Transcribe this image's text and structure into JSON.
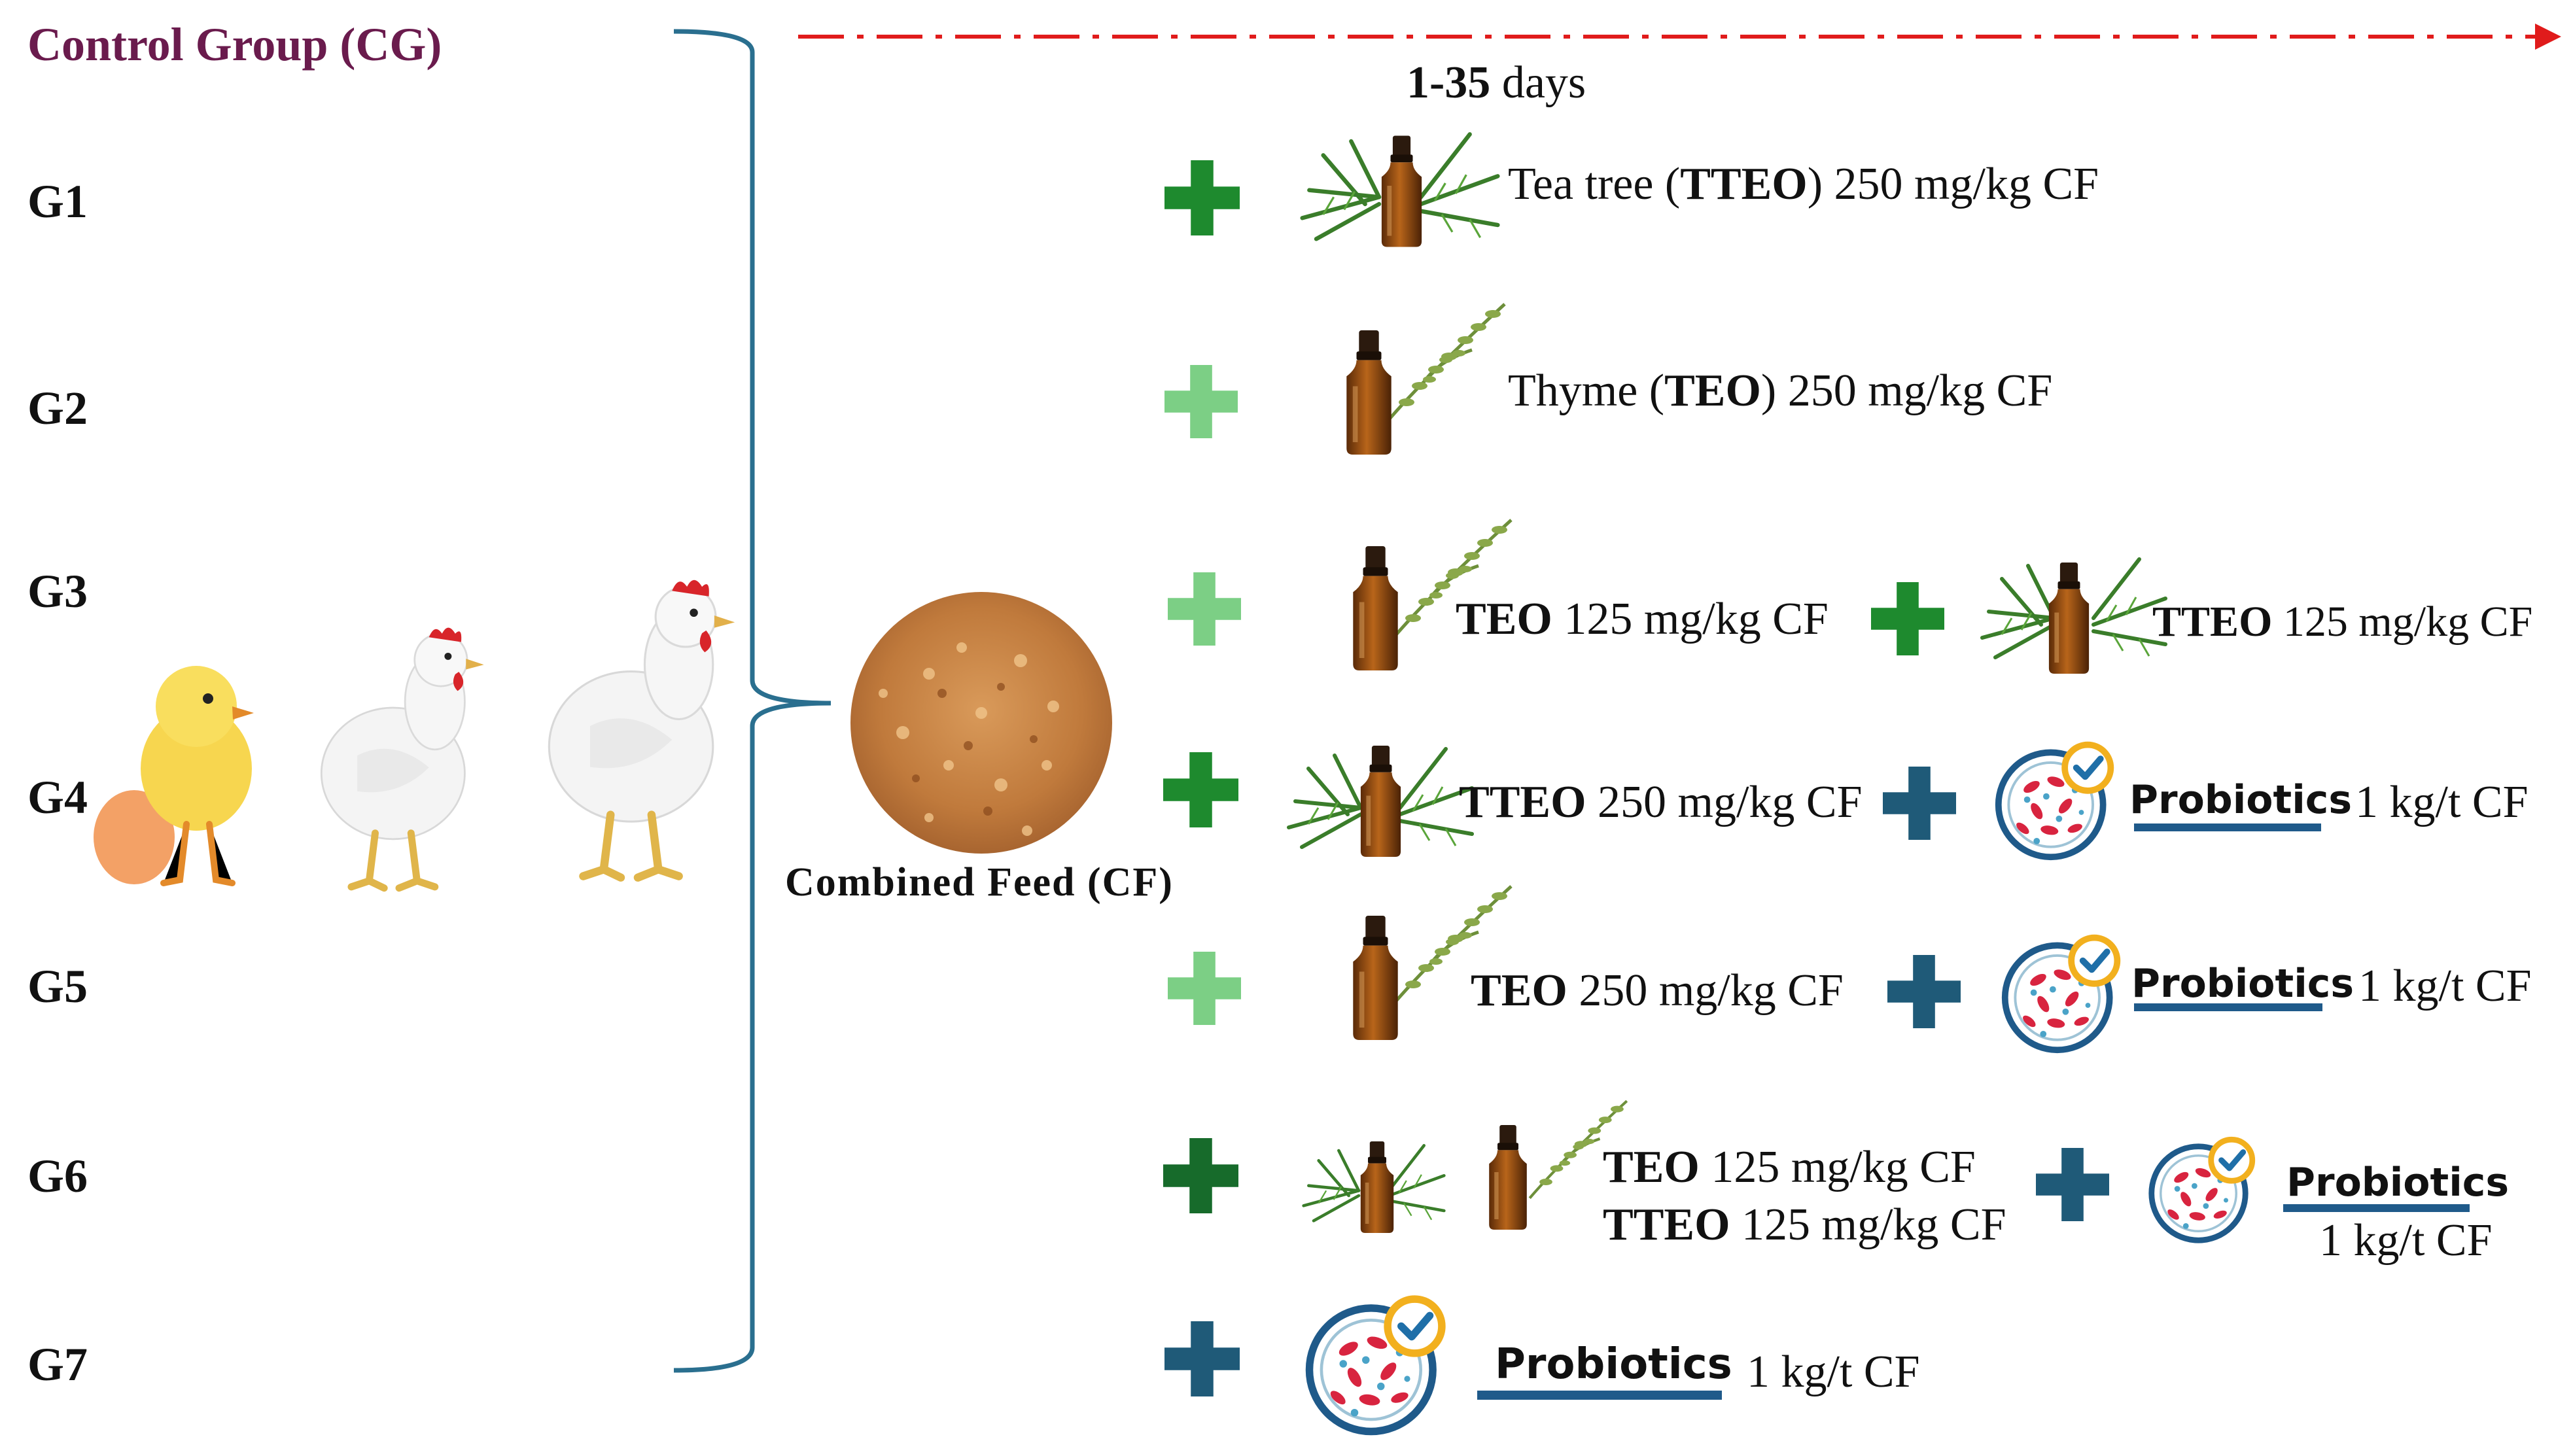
{
  "control_group": "Control Group (CG)",
  "groups": [
    "G1",
    "G2",
    "G3",
    "G4",
    "G5",
    "G6",
    "G7"
  ],
  "duration": {
    "bold": "1-35",
    "rest": " days"
  },
  "feed": "Combined Feed (CF)",
  "rows": {
    "g1": {
      "pre": "Tea tree (",
      "abbr": "TTEO",
      "post": ") 250 mg/kg CF"
    },
    "g2": {
      "pre": "Thyme (",
      "abbr": "TEO",
      "post": ") 250 mg/kg CF"
    },
    "g3": {
      "a_abbr": "TEO",
      "a_dose": " 125 mg/kg CF",
      "b_abbr": "TTEO",
      "b_dose": " 125 mg/kg CF"
    },
    "g4": {
      "abbr": "TTEO",
      "dose": " 250 mg/kg CF",
      "probiotics": "Probiotics",
      "probiotics_dose": "1 kg/t CF"
    },
    "g5": {
      "abbr": "TEO",
      "dose": " 250 mg/kg CF",
      "probiotics": "Probiotics",
      "probiotics_dose": "1 kg/t CF"
    },
    "g6": {
      "line1_abbr": "TEO",
      "line1_dose": " 125 mg/kg CF",
      "line2_abbr": "TTEO",
      "line2_dose": " 125 mg/kg CF",
      "probiotics": "Probiotics",
      "probiotics_dose": "1 kg/t CF"
    },
    "g7": {
      "probiotics": "Probiotics",
      "probiotics_dose": "1 kg/t CF"
    }
  },
  "colors": {
    "control_text": "#6a1b4d",
    "bracket": "#2a6f8f",
    "arrow": "#e01b1b",
    "plus_dark_green": "#1e8a2e",
    "plus_light_green": "#7ccf85",
    "plus_forest": "#176b2b",
    "plus_blue": "#1f5a78",
    "probiotic_underline": "#1f5a8a"
  }
}
